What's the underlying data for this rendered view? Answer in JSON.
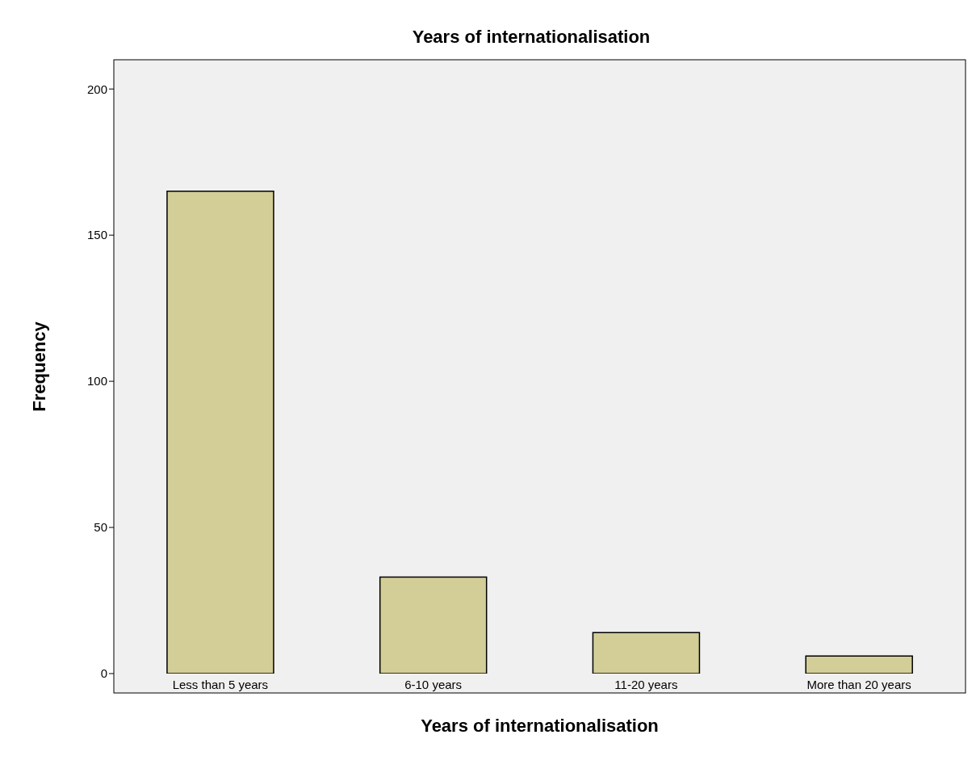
{
  "chart_data": {
    "type": "bar",
    "title": "Years of internationalisation",
    "xlabel": "Years of internationalisation",
    "ylabel": "Frequency",
    "categories": [
      "Less than 5 years",
      "6-10 years",
      "11-20 years",
      "More than 20 years"
    ],
    "values": [
      165,
      33,
      14,
      6
    ],
    "color": "#d3ce97",
    "ylim": [
      0,
      210
    ],
    "yticks": [
      0,
      50,
      100,
      150,
      200
    ],
    "grid": false
  }
}
